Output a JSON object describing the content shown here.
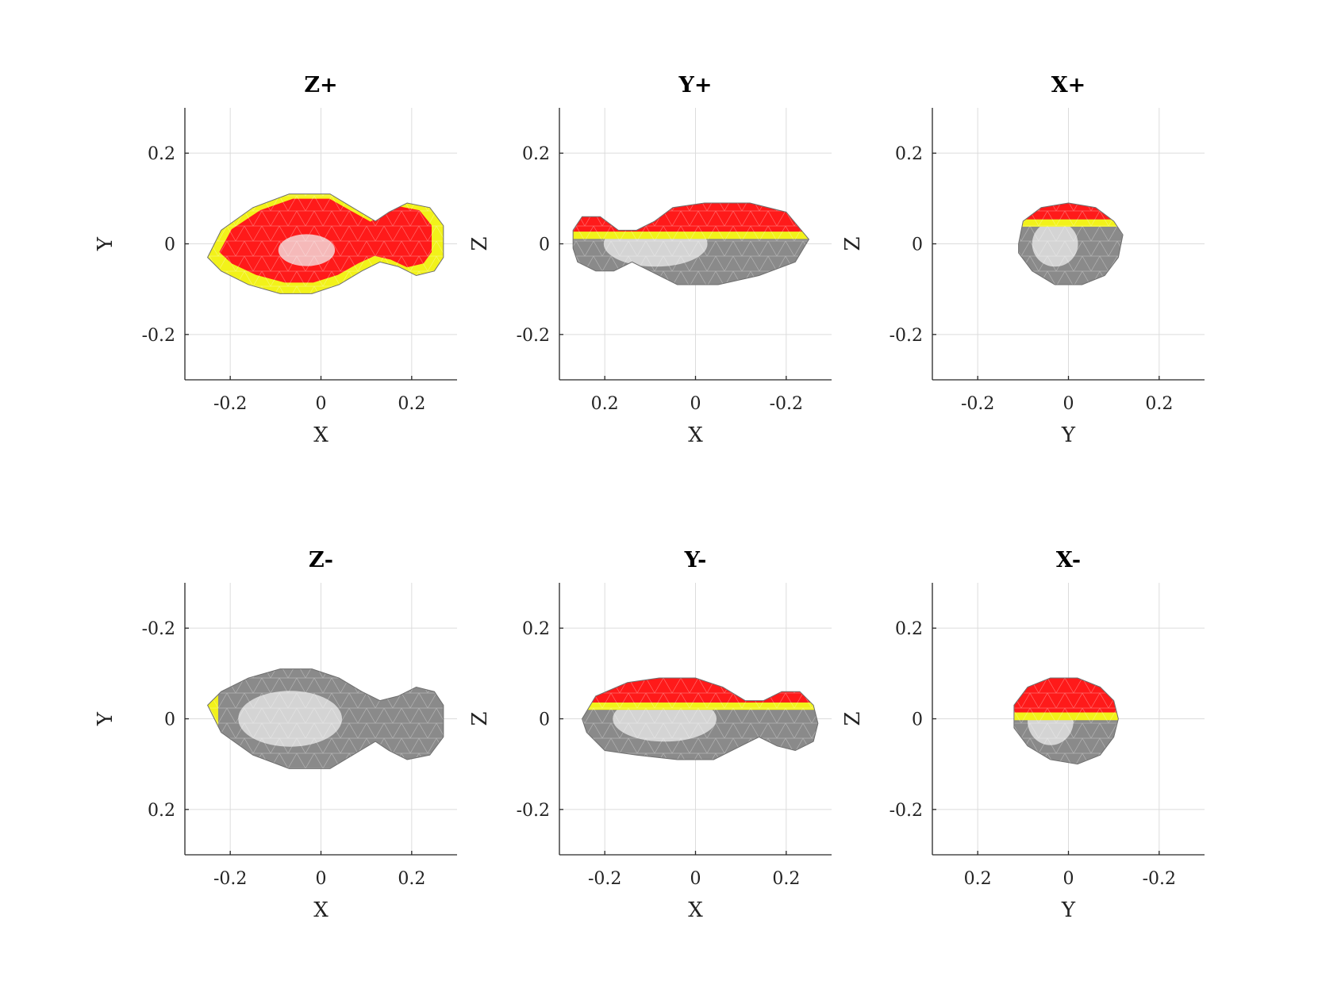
{
  "chart_data": [
    {
      "type": "scatter",
      "title": "Z+",
      "xlabel": "X",
      "ylabel": "Y",
      "xlim": [
        -0.3,
        0.3
      ],
      "ylim": [
        -0.3,
        0.3
      ],
      "x_ticks": [
        {
          "value": -0.2,
          "label": "-0.2"
        },
        {
          "value": 0,
          "label": "0"
        },
        {
          "value": 0.2,
          "label": "0.2"
        }
      ],
      "y_ticks": [
        {
          "value": -0.2,
          "label": "-0.2"
        },
        {
          "value": 0,
          "label": "0"
        },
        {
          "value": 0.2,
          "label": "0.2"
        }
      ],
      "grid": true,
      "colors": {
        "lit": "#ff1a1a",
        "terminator": "#f2f21a",
        "shadow": "#8a8a8a"
      },
      "body": {
        "outline": [
          [
            -0.25,
            -0.03
          ],
          [
            -0.22,
            0.03
          ],
          [
            -0.15,
            0.08
          ],
          [
            -0.07,
            0.11
          ],
          [
            0.02,
            0.11
          ],
          [
            0.07,
            0.08
          ],
          [
            0.12,
            0.05
          ],
          [
            0.15,
            0.07
          ],
          [
            0.19,
            0.09
          ],
          [
            0.24,
            0.08
          ],
          [
            0.27,
            0.04
          ],
          [
            0.27,
            -0.03
          ],
          [
            0.25,
            -0.06
          ],
          [
            0.21,
            -0.07
          ],
          [
            0.17,
            -0.05
          ],
          [
            0.13,
            -0.04
          ],
          [
            0.09,
            -0.06
          ],
          [
            0.04,
            -0.09
          ],
          [
            -0.02,
            -0.11
          ],
          [
            -0.09,
            -0.11
          ],
          [
            -0.16,
            -0.09
          ],
          [
            -0.22,
            -0.06
          ]
        ],
        "lit_fraction": 0.85,
        "terminator_side": "rim"
      }
    },
    {
      "type": "scatter",
      "title": "Y+",
      "xlabel": "X",
      "ylabel": "Z",
      "xlim": [
        0.3,
        -0.3
      ],
      "ylim": [
        -0.3,
        0.3
      ],
      "x_ticks": [
        {
          "value": 0.2,
          "label": "0.2"
        },
        {
          "value": 0,
          "label": "0"
        },
        {
          "value": -0.2,
          "label": "-0.2"
        }
      ],
      "y_ticks": [
        {
          "value": -0.2,
          "label": "-0.2"
        },
        {
          "value": 0,
          "label": "0"
        },
        {
          "value": 0.2,
          "label": "0.2"
        }
      ],
      "grid": true,
      "colors": {
        "lit": "#ff1a1a",
        "terminator": "#f2f21a",
        "shadow": "#8a8a8a"
      },
      "body": {
        "outline": [
          [
            0.27,
            -0.01
          ],
          [
            0.27,
            0.03
          ],
          [
            0.25,
            0.06
          ],
          [
            0.21,
            0.06
          ],
          [
            0.17,
            0.03
          ],
          [
            0.13,
            0.03
          ],
          [
            0.09,
            0.05
          ],
          [
            0.05,
            0.08
          ],
          [
            -0.02,
            0.09
          ],
          [
            -0.12,
            0.09
          ],
          [
            -0.2,
            0.07
          ],
          [
            -0.25,
            0.01
          ],
          [
            -0.22,
            -0.04
          ],
          [
            -0.14,
            -0.07
          ],
          [
            -0.05,
            -0.09
          ],
          [
            0.04,
            -0.09
          ],
          [
            0.1,
            -0.06
          ],
          [
            0.14,
            -0.04
          ],
          [
            0.18,
            -0.06
          ],
          [
            0.22,
            -0.06
          ],
          [
            0.26,
            -0.04
          ]
        ],
        "lit_fraction": 0.35,
        "terminator_side": "top"
      }
    },
    {
      "type": "scatter",
      "title": "X+",
      "xlabel": "Y",
      "ylabel": "Z",
      "xlim": [
        -0.3,
        0.3
      ],
      "ylim": [
        -0.3,
        0.3
      ],
      "x_ticks": [
        {
          "value": -0.2,
          "label": "-0.2"
        },
        {
          "value": 0,
          "label": "0"
        },
        {
          "value": 0.2,
          "label": "0.2"
        }
      ],
      "y_ticks": [
        {
          "value": -0.2,
          "label": "-0.2"
        },
        {
          "value": 0,
          "label": "0"
        },
        {
          "value": 0.2,
          "label": "0.2"
        }
      ],
      "grid": true,
      "colors": {
        "lit": "#ff1a1a",
        "terminator": "#f2f21a",
        "shadow": "#8a8a8a"
      },
      "body": {
        "outline": [
          [
            -0.11,
            0.0
          ],
          [
            -0.1,
            0.05
          ],
          [
            -0.06,
            0.08
          ],
          [
            0.0,
            0.09
          ],
          [
            0.06,
            0.08
          ],
          [
            0.1,
            0.05
          ],
          [
            0.12,
            0.02
          ],
          [
            0.11,
            -0.03
          ],
          [
            0.08,
            -0.07
          ],
          [
            0.03,
            -0.09
          ],
          [
            -0.03,
            -0.09
          ],
          [
            -0.08,
            -0.06
          ],
          [
            -0.11,
            -0.02
          ]
        ],
        "lit_fraction": 0.2,
        "terminator_side": "top"
      }
    },
    {
      "type": "scatter",
      "title": "Z-",
      "xlabel": "X",
      "ylabel": "Y",
      "xlim": [
        -0.3,
        0.3
      ],
      "ylim": [
        0.3,
        -0.3
      ],
      "x_ticks": [
        {
          "value": -0.2,
          "label": "-0.2"
        },
        {
          "value": 0,
          "label": "0"
        },
        {
          "value": 0.2,
          "label": "0.2"
        }
      ],
      "y_ticks": [
        {
          "value": -0.2,
          "label": "-0.2"
        },
        {
          "value": 0,
          "label": "0"
        },
        {
          "value": 0.2,
          "label": "0.2"
        }
      ],
      "grid": true,
      "colors": {
        "lit": "#ff1a1a",
        "terminator": "#f2f21a",
        "shadow": "#8a8a8a"
      },
      "body": {
        "outline": [
          [
            -0.25,
            -0.03
          ],
          [
            -0.22,
            -0.06
          ],
          [
            -0.16,
            -0.09
          ],
          [
            -0.09,
            -0.11
          ],
          [
            -0.02,
            -0.11
          ],
          [
            0.04,
            -0.09
          ],
          [
            0.09,
            -0.06
          ],
          [
            0.13,
            -0.04
          ],
          [
            0.17,
            -0.05
          ],
          [
            0.21,
            -0.07
          ],
          [
            0.25,
            -0.06
          ],
          [
            0.27,
            -0.03
          ],
          [
            0.27,
            0.04
          ],
          [
            0.24,
            0.08
          ],
          [
            0.19,
            0.09
          ],
          [
            0.15,
            0.07
          ],
          [
            0.12,
            0.05
          ],
          [
            0.07,
            0.08
          ],
          [
            0.02,
            0.11
          ],
          [
            -0.07,
            0.11
          ],
          [
            -0.15,
            0.08
          ],
          [
            -0.22,
            0.03
          ]
        ],
        "lit_fraction": 0.0,
        "terminator_side": "left-edge"
      }
    },
    {
      "type": "scatter",
      "title": "Y-",
      "xlabel": "X",
      "ylabel": "Z",
      "xlim": [
        -0.3,
        0.3
      ],
      "ylim": [
        -0.3,
        0.3
      ],
      "x_ticks": [
        {
          "value": -0.2,
          "label": "-0.2"
        },
        {
          "value": 0,
          "label": "0"
        },
        {
          "value": 0.2,
          "label": "0.2"
        }
      ],
      "y_ticks": [
        {
          "value": -0.2,
          "label": "-0.2"
        },
        {
          "value": 0,
          "label": "0"
        },
        {
          "value": 0.2,
          "label": "0.2"
        }
      ],
      "grid": true,
      "colors": {
        "lit": "#ff1a1a",
        "terminator": "#f2f21a",
        "shadow": "#8a8a8a"
      },
      "body": {
        "outline": [
          [
            -0.25,
            0.0
          ],
          [
            -0.22,
            0.05
          ],
          [
            -0.15,
            0.08
          ],
          [
            -0.08,
            0.09
          ],
          [
            0.0,
            0.09
          ],
          [
            0.06,
            0.07
          ],
          [
            0.11,
            0.04
          ],
          [
            0.15,
            0.04
          ],
          [
            0.19,
            0.06
          ],
          [
            0.23,
            0.06
          ],
          [
            0.26,
            0.03
          ],
          [
            0.27,
            -0.01
          ],
          [
            0.26,
            -0.05
          ],
          [
            0.22,
            -0.07
          ],
          [
            0.18,
            -0.06
          ],
          [
            0.14,
            -0.04
          ],
          [
            0.1,
            -0.06
          ],
          [
            0.04,
            -0.09
          ],
          [
            -0.04,
            -0.09
          ],
          [
            -0.13,
            -0.08
          ],
          [
            -0.2,
            -0.07
          ],
          [
            -0.24,
            -0.03
          ]
        ],
        "lit_fraction": 0.3,
        "terminator_side": "top"
      }
    },
    {
      "type": "scatter",
      "title": "X-",
      "xlabel": "Y",
      "ylabel": "Z",
      "xlim": [
        0.3,
        -0.3
      ],
      "ylim": [
        -0.3,
        0.3
      ],
      "x_ticks": [
        {
          "value": 0.2,
          "label": "0.2"
        },
        {
          "value": 0,
          "label": "0"
        },
        {
          "value": -0.2,
          "label": "-0.2"
        }
      ],
      "y_ticks": [
        {
          "value": -0.2,
          "label": "-0.2"
        },
        {
          "value": 0,
          "label": "0"
        },
        {
          "value": 0.2,
          "label": "0.2"
        }
      ],
      "grid": true,
      "colors": {
        "lit": "#ff1a1a",
        "terminator": "#f2f21a",
        "shadow": "#8a8a8a"
      },
      "body": {
        "outline": [
          [
            0.12,
            0.03
          ],
          [
            0.09,
            0.07
          ],
          [
            0.04,
            0.09
          ],
          [
            -0.02,
            0.09
          ],
          [
            -0.07,
            0.07
          ],
          [
            -0.1,
            0.04
          ],
          [
            -0.11,
            0.0
          ],
          [
            -0.1,
            -0.04
          ],
          [
            -0.07,
            -0.08
          ],
          [
            -0.02,
            -0.1
          ],
          [
            0.04,
            -0.09
          ],
          [
            0.09,
            -0.06
          ],
          [
            0.12,
            -0.02
          ]
        ],
        "lit_fraction": 0.4,
        "terminator_side": "top"
      }
    }
  ]
}
